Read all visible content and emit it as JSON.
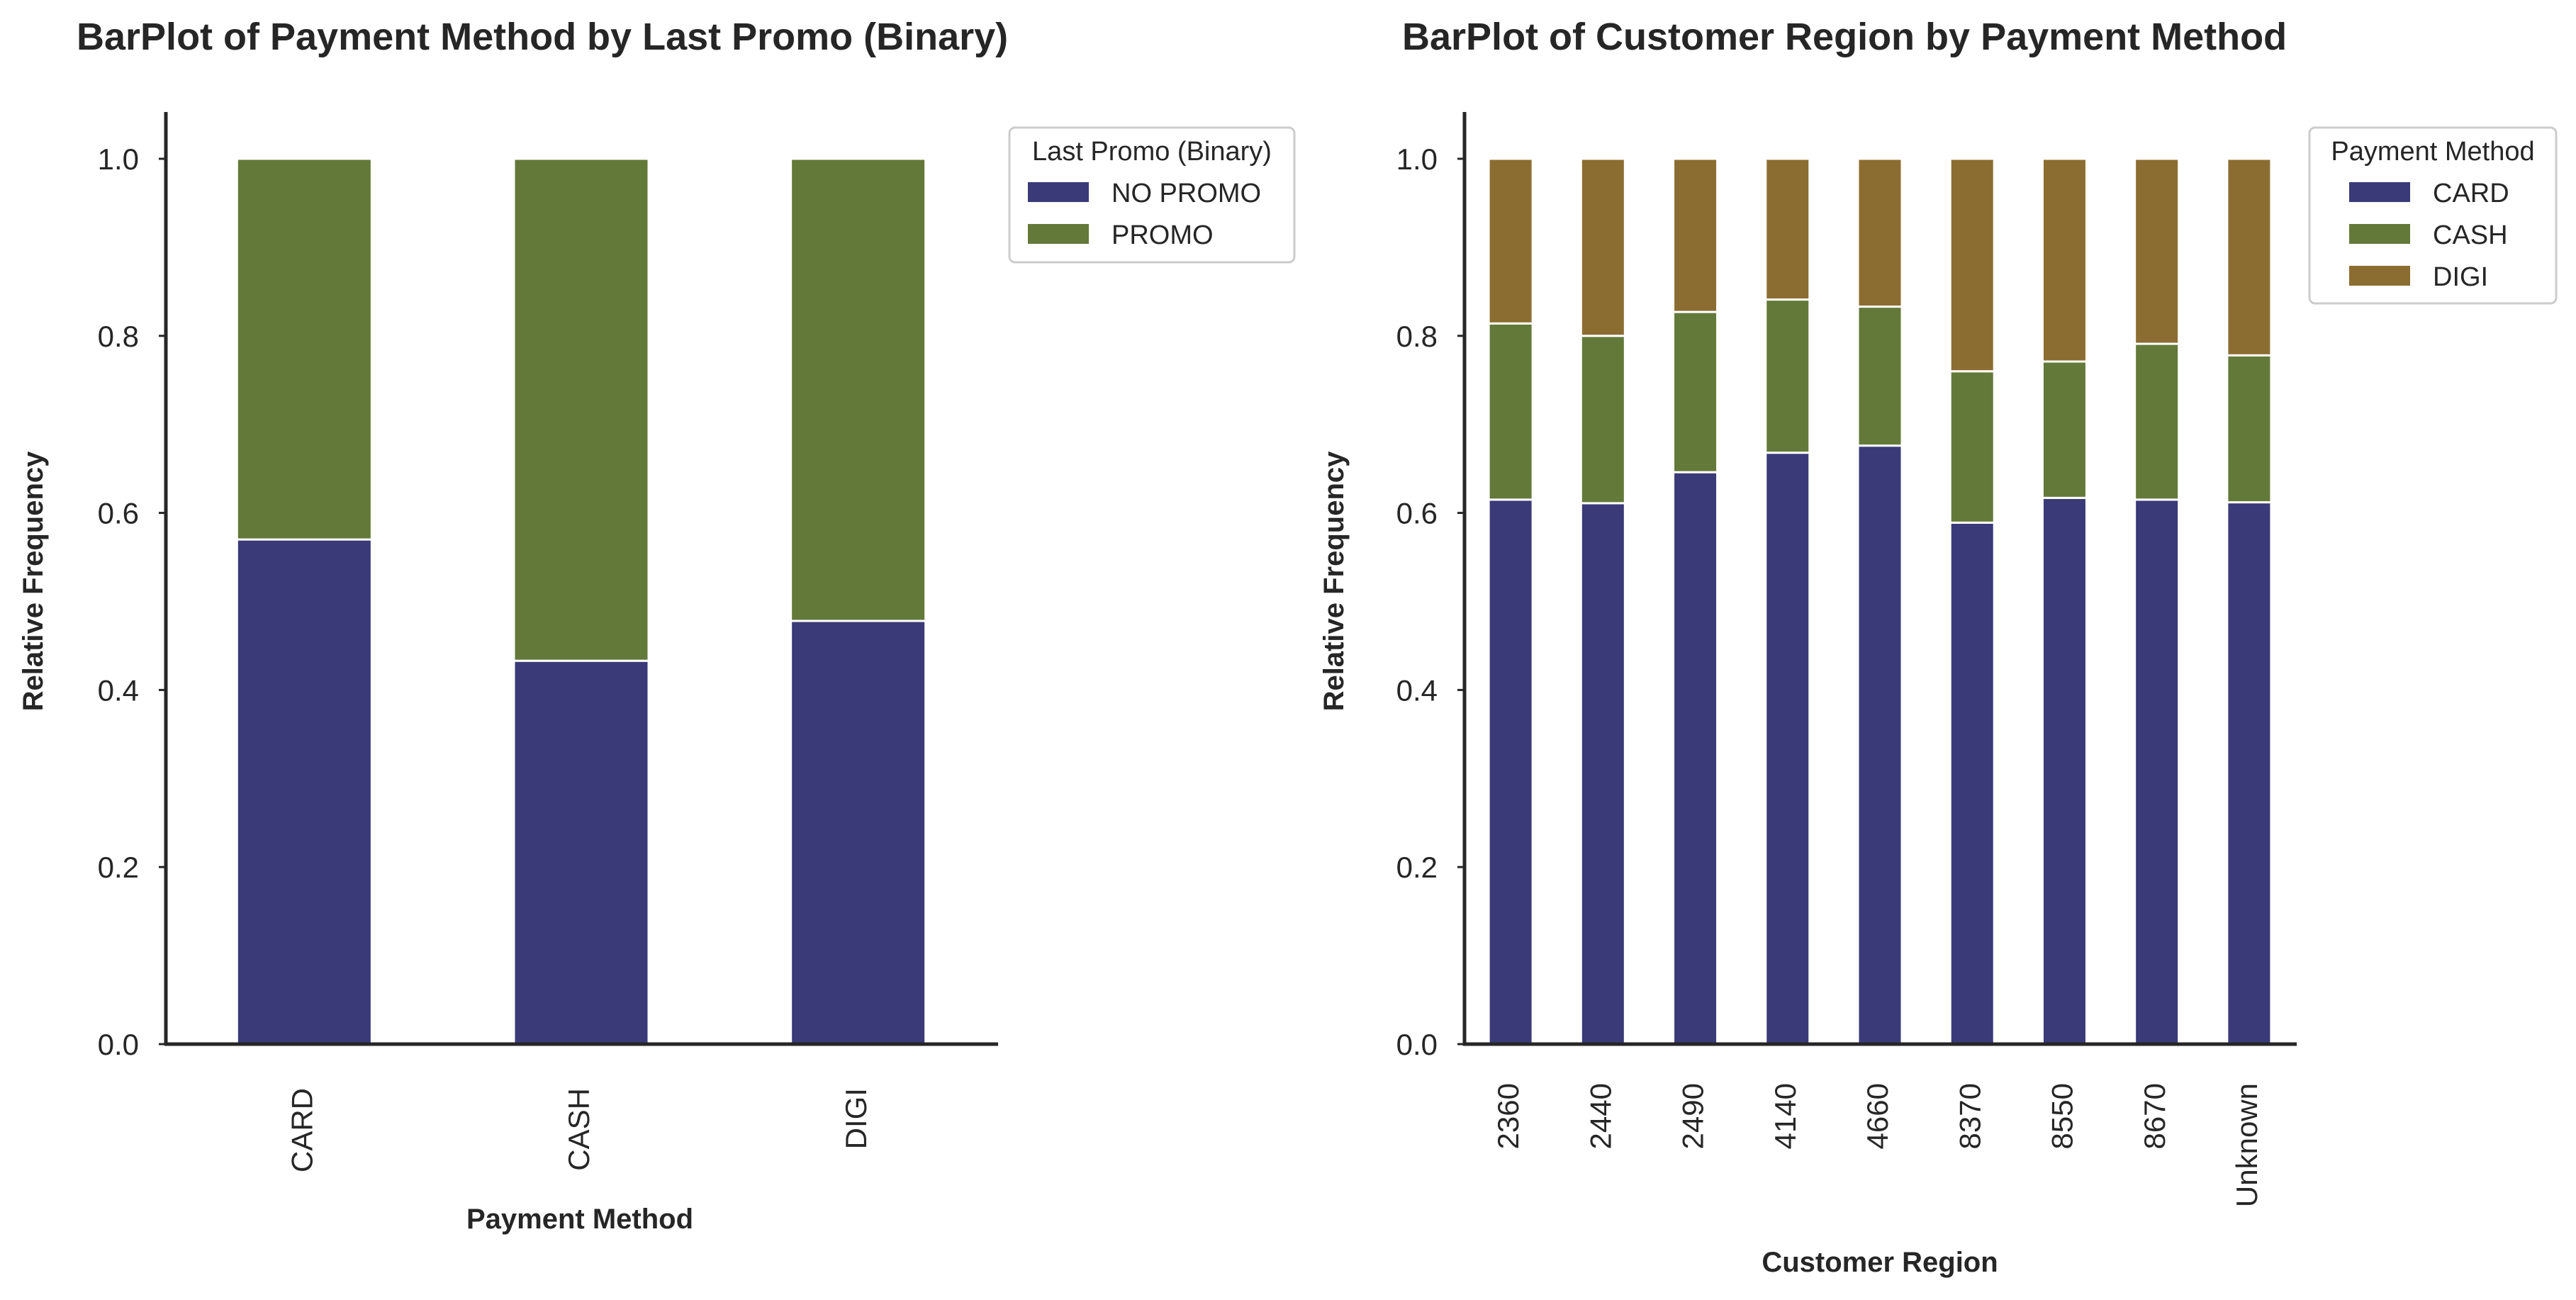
{
  "colors": {
    "card": "#3a3a78",
    "cash": "#637939",
    "digi": "#8c6d31",
    "no_promo": "#3a3a78",
    "promo": "#637939"
  },
  "chart_data": [
    {
      "type": "bar",
      "stacked": true,
      "title": "BarPlot of Payment Method by Last Promo (Binary)",
      "xlabel": "Payment Method",
      "ylabel": "Relative Frequency",
      "ylim": [
        0,
        1.05
      ],
      "yticks": [
        "0.0",
        "0.2",
        "0.4",
        "0.6",
        "0.8",
        "1.0"
      ],
      "grid": false,
      "legend_position": "upper-right-outside",
      "legend_title": "Last Promo (Binary)",
      "categories": [
        "CARD",
        "CASH",
        "DIGI"
      ],
      "series": [
        {
          "name": "NO PROMO",
          "color": "#3a3a78",
          "values": [
            0.57,
            0.433,
            0.478
          ]
        },
        {
          "name": "PROMO",
          "color": "#637939",
          "values": [
            0.43,
            0.567,
            0.522
          ]
        }
      ]
    },
    {
      "type": "bar",
      "stacked": true,
      "title": "BarPlot of Customer Region by Payment Method",
      "xlabel": "Customer Region",
      "ylabel": "Relative Frequency",
      "ylim": [
        0,
        1.05
      ],
      "yticks": [
        "0.0",
        "0.2",
        "0.4",
        "0.6",
        "0.8",
        "1.0"
      ],
      "grid": false,
      "legend_position": "upper-right-outside",
      "legend_title": "Payment Method",
      "categories": [
        "2360",
        "2440",
        "2490",
        "4140",
        "4660",
        "8370",
        "8550",
        "8670",
        "Unknown"
      ],
      "series": [
        {
          "name": "CARD",
          "color": "#3a3a78",
          "values": [
            0.615,
            0.611,
            0.646,
            0.668,
            0.676,
            0.589,
            0.617,
            0.615,
            0.612
          ]
        },
        {
          "name": "CASH",
          "color": "#637939",
          "values": [
            0.199,
            0.189,
            0.181,
            0.173,
            0.157,
            0.171,
            0.154,
            0.176,
            0.166
          ]
        },
        {
          "name": "DIGI",
          "color": "#8c6d31",
          "values": [
            0.186,
            0.2,
            0.173,
            0.159,
            0.167,
            0.24,
            0.229,
            0.209,
            0.222
          ]
        }
      ]
    }
  ]
}
